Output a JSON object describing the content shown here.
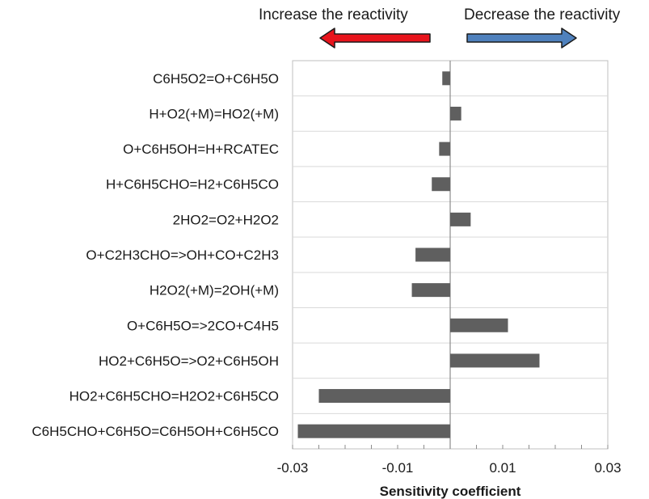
{
  "chart_data": {
    "type": "bar",
    "orientation": "horizontal",
    "categories": [
      "C6H5O2=O+C6H5O",
      "H+O2(+M)=HO2(+M)",
      "O+C6H5OH=H+RCATEC",
      "H+C6H5CHO=H2+C6H5CO",
      "2HO2=O2+H2O2",
      "O+C2H3CHO=>OH+CO+C2H3",
      "H2O2(+M)=2OH(+M)",
      "O+C6H5O=>2CO+C4H5",
      "HO2+C6H5O=>O2+C6H5OH",
      "HO2+C6H5CHO=H2O2+C6H5CO",
      "C6H5CHO+C6H5O=C6H5OH+C6H5CO"
    ],
    "values": [
      -0.0015,
      0.0021,
      -0.0021,
      -0.0035,
      0.0039,
      -0.0066,
      -0.0073,
      0.011,
      0.017,
      -0.025,
      -0.029
    ],
    "xlabel": "Sensitivity coefficient",
    "xlim": [
      -0.03,
      0.03
    ],
    "xticks": [
      "-0.03",
      "-0.01",
      "0.01",
      "0.03"
    ],
    "grid": "horizontal",
    "bar_color": "#5f5f5f",
    "annotations": {
      "left": {
        "text": "Increase the reactivity",
        "arrow_color": "#e8141c",
        "direction": "left"
      },
      "right": {
        "text": "Decrease the reactivity",
        "arrow_color": "#4f81bd",
        "direction": "right"
      }
    }
  }
}
